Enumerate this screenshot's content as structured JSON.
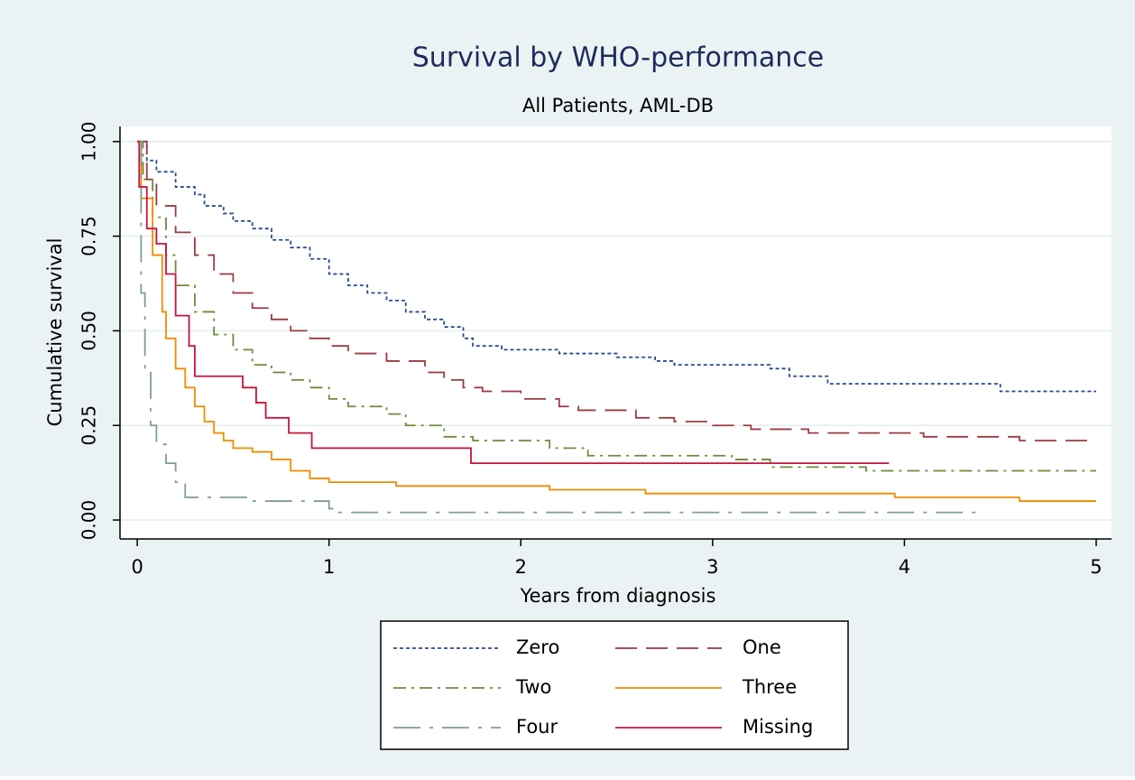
{
  "chart_data": {
    "type": "step",
    "title": "Survival by WHO-performance",
    "subtitle": "All Patients, AML-DB",
    "x_label": "Years from diagnosis",
    "y_label": "Cumulative survival",
    "xlim": [
      -0.09,
      5.08
    ],
    "ylim": [
      -0.05,
      1.04
    ],
    "xticks": [
      0,
      1,
      2,
      3,
      4,
      5
    ],
    "yticks": [
      {
        "value": 0,
        "label": "0.00"
      },
      {
        "value": 0.25,
        "label": "0.25"
      },
      {
        "value": 0.5,
        "label": "0.50"
      },
      {
        "value": 0.75,
        "label": "0.75"
      },
      {
        "value": 1,
        "label": "1.00"
      }
    ],
    "grid": true,
    "legend": "bottom",
    "series": [
      {
        "name": "Zero",
        "color": "#2b4b8c",
        "dash": "4,3",
        "x": [
          0,
          0.05,
          0.1,
          0.2,
          0.3,
          0.35,
          0.45,
          0.5,
          0.6,
          0.7,
          0.8,
          0.9,
          1.0,
          1.1,
          1.2,
          1.3,
          1.4,
          1.5,
          1.6,
          1.7,
          1.75,
          1.9,
          2.2,
          2.5,
          2.7,
          2.8,
          3.3,
          3.4,
          3.6,
          4.5,
          5.0
        ],
        "values": [
          1,
          0.95,
          0.92,
          0.88,
          0.86,
          0.83,
          0.81,
          0.79,
          0.77,
          0.74,
          0.72,
          0.69,
          0.65,
          0.62,
          0.6,
          0.58,
          0.55,
          0.53,
          0.51,
          0.48,
          0.46,
          0.45,
          0.44,
          0.43,
          0.42,
          0.41,
          0.4,
          0.38,
          0.36,
          0.34,
          0.34
        ]
      },
      {
        "name": "One",
        "color": "#9c3a42",
        "dash": "24,10",
        "x": [
          0,
          0.05,
          0.1,
          0.2,
          0.3,
          0.4,
          0.5,
          0.6,
          0.7,
          0.8,
          0.9,
          1.0,
          1.1,
          1.3,
          1.5,
          1.6,
          1.7,
          1.8,
          2.0,
          2.2,
          2.3,
          2.6,
          2.8,
          3.0,
          3.2,
          3.5,
          4.1,
          4.6,
          5.0
        ],
        "values": [
          1,
          0.9,
          0.83,
          0.76,
          0.7,
          0.65,
          0.6,
          0.56,
          0.53,
          0.5,
          0.48,
          0.46,
          0.44,
          0.42,
          0.39,
          0.37,
          0.35,
          0.34,
          0.32,
          0.3,
          0.29,
          0.27,
          0.26,
          0.25,
          0.24,
          0.23,
          0.22,
          0.21,
          0.21
        ]
      },
      {
        "name": "Two",
        "color": "#6e8b3d",
        "dash": "14,6,3,6",
        "x": [
          0,
          0.03,
          0.08,
          0.15,
          0.2,
          0.3,
          0.4,
          0.5,
          0.6,
          0.7,
          0.8,
          0.9,
          1.0,
          1.1,
          1.3,
          1.4,
          1.6,
          1.75,
          2.15,
          2.35,
          3.1,
          3.3,
          3.8,
          5.0
        ],
        "values": [
          1,
          0.9,
          0.8,
          0.7,
          0.62,
          0.55,
          0.49,
          0.45,
          0.41,
          0.39,
          0.37,
          0.35,
          0.32,
          0.3,
          0.28,
          0.25,
          0.22,
          0.21,
          0.19,
          0.17,
          0.16,
          0.14,
          0.13,
          0.13
        ]
      },
      {
        "name": "Three",
        "color": "#f08c00",
        "dash": "none",
        "x": [
          0,
          0.02,
          0.08,
          0.13,
          0.15,
          0.2,
          0.25,
          0.3,
          0.35,
          0.4,
          0.45,
          0.5,
          0.6,
          0.7,
          0.8,
          0.9,
          1.0,
          1.35,
          2.15,
          2.65,
          3.95,
          4.6,
          5.0
        ],
        "values": [
          1,
          0.85,
          0.7,
          0.55,
          0.48,
          0.4,
          0.35,
          0.3,
          0.26,
          0.23,
          0.21,
          0.19,
          0.18,
          0.16,
          0.13,
          0.11,
          0.1,
          0.09,
          0.08,
          0.07,
          0.06,
          0.05,
          0.05
        ]
      },
      {
        "name": "Four",
        "color": "#7f9c9a",
        "dash": "30,10,4,10",
        "x": [
          0,
          0.02,
          0.04,
          0.07,
          0.1,
          0.15,
          0.2,
          0.25,
          0.6,
          1.0,
          1.05,
          4.4
        ],
        "values": [
          1,
          0.6,
          0.4,
          0.25,
          0.2,
          0.15,
          0.1,
          0.06,
          0.05,
          0.03,
          0.02,
          0.02
        ]
      },
      {
        "name": "Missing",
        "color": "#c8143c",
        "dash": "none",
        "x": [
          0,
          0.01,
          0.05,
          0.1,
          0.15,
          0.2,
          0.27,
          0.3,
          0.55,
          0.62,
          0.67,
          0.79,
          0.91,
          1.74,
          3.92
        ],
        "values": [
          1,
          0.88,
          0.77,
          0.73,
          0.65,
          0.54,
          0.46,
          0.38,
          0.35,
          0.31,
          0.27,
          0.23,
          0.19,
          0.15,
          0.15
        ]
      }
    ]
  }
}
